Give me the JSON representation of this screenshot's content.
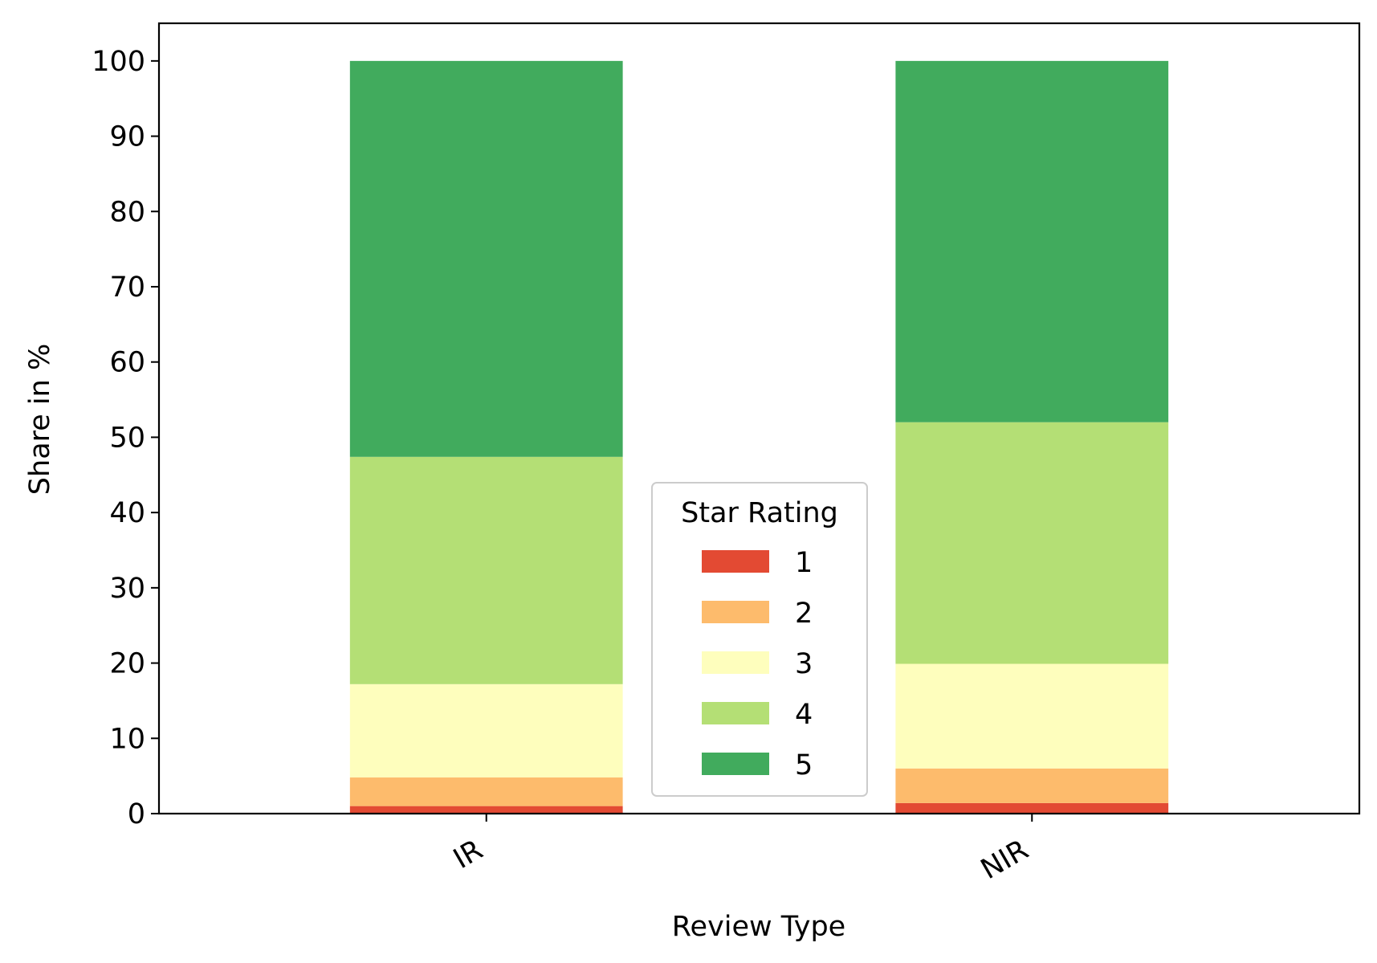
{
  "chart_data": {
    "type": "bar",
    "stacked": true,
    "categories": [
      "IR",
      "NIR"
    ],
    "series": [
      {
        "name": "1",
        "values": [
          1.0,
          1.4
        ],
        "color": "#e34a33"
      },
      {
        "name": "2",
        "values": [
          3.8,
          4.6
        ],
        "color": "#fdbb6c"
      },
      {
        "name": "3",
        "values": [
          12.4,
          13.9
        ],
        "color": "#fefebd"
      },
      {
        "name": "4",
        "values": [
          30.2,
          32.1
        ],
        "color": "#b4df75"
      },
      {
        "name": "5",
        "values": [
          52.6,
          48.0
        ],
        "color": "#41ab5d"
      }
    ],
    "title": "",
    "xlabel": "Review Type",
    "ylabel": "Share in %",
    "ylim": [
      0,
      105
    ],
    "yticks": [
      0,
      10,
      20,
      30,
      40,
      50,
      60,
      70,
      80,
      90,
      100
    ],
    "grid": false,
    "legend": {
      "title": "Star Rating",
      "placement": "lower-center"
    }
  }
}
